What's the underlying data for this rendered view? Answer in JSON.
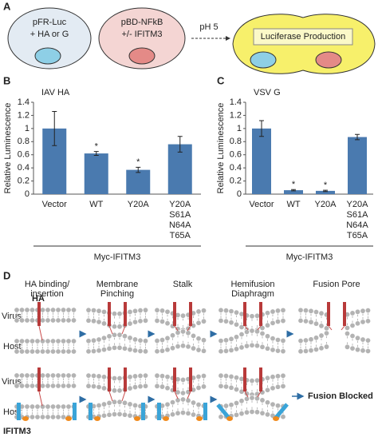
{
  "panel_a": {
    "label": "A",
    "cells": [
      {
        "lines": [
          "pFR-Luc",
          "+ HA or G"
        ]
      },
      {
        "lines": [
          "pBD-NFkB",
          "+/- IFITM3"
        ]
      }
    ],
    "arrow_label": "pH 5",
    "product": "Luciferase Production"
  },
  "chart_data": [
    {
      "type": "bar",
      "panel_label": "B",
      "title": "IAV HA",
      "y_label": "Relative Luminescence",
      "categories": [
        "Vector",
        "WT",
        "Y20A",
        "Y20A\nS61A\nN64A\nT65A"
      ],
      "values": [
        1.0,
        0.62,
        0.37,
        0.76
      ],
      "errors": [
        0.26,
        0.03,
        0.04,
        0.12
      ],
      "markers": [
        null,
        "*",
        "*",
        null
      ],
      "group_label": "Myc-IFITM3",
      "color": "#4a7aaf",
      "ylim": [
        0,
        1.4
      ],
      "yticks": [
        0,
        0.2,
        0.4,
        0.6,
        0.8,
        1,
        1.2,
        1.4
      ]
    },
    {
      "type": "bar",
      "panel_label": "C",
      "title": "VSV G",
      "y_label": "Relative Luminescence",
      "categories": [
        "Vector",
        "WT",
        "Y20A",
        "Y20A\nS61A\nN64A\nT65A"
      ],
      "values": [
        1.0,
        0.06,
        0.05,
        0.87
      ],
      "errors": [
        0.12,
        0.01,
        0.01,
        0.04
      ],
      "markers": [
        null,
        "*",
        "*",
        null
      ],
      "group_label": "Myc-IFITM3",
      "color": "#4a7aaf",
      "ylim": [
        0,
        1.4
      ],
      "yticks": [
        0,
        0.2,
        0.4,
        0.6,
        0.8,
        1,
        1.2,
        1.4
      ]
    }
  ],
  "panel_d": {
    "label": "D",
    "stages": [
      "HA binding/\ninsertion",
      "Membrane\nPinching",
      "Stalk",
      "Hemifusion\nDiaphragm",
      "Fusion Pore"
    ],
    "rows": [
      {
        "virus": "Virus",
        "host": "Host"
      },
      {
        "virus": "Virus",
        "host": "Host"
      }
    ],
    "ha_label": "HA",
    "ifitm3_label": "IFITM3",
    "outcome": "Fusion Blocked"
  }
}
